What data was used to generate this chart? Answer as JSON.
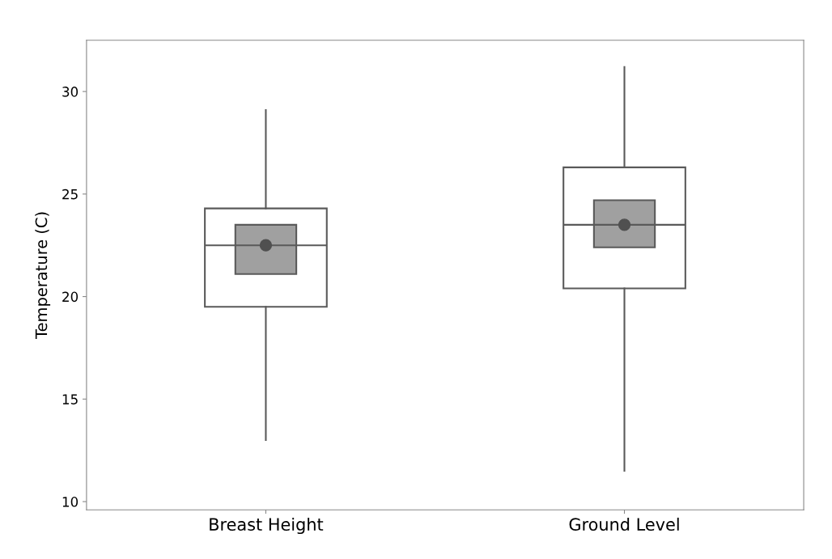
{
  "chart_data": {
    "type": "box",
    "ylabel": "Temperature (C)",
    "categories": [
      "Breast Height",
      "Ground Level"
    ],
    "ylim": [
      9.6,
      32.5
    ],
    "yticks": [
      10,
      15,
      20,
      25,
      30
    ],
    "grid": false,
    "series": [
      {
        "color": "#ffffff",
        "boxes": [
          {
            "low": 13.0,
            "q1": 19.5,
            "median": 22.5,
            "q3": 24.3,
            "high": 29.1,
            "mean": 22.5
          },
          {
            "low": 11.5,
            "q1": 20.4,
            "median": 23.5,
            "q3": 26.3,
            "high": 31.2,
            "mean": 23.5
          }
        ]
      },
      {
        "type": "bar",
        "color": "#a0a0a0",
        "base": [
          21.1,
          22.4
        ],
        "values": [
          2.4,
          2.3
        ]
      }
    ]
  }
}
